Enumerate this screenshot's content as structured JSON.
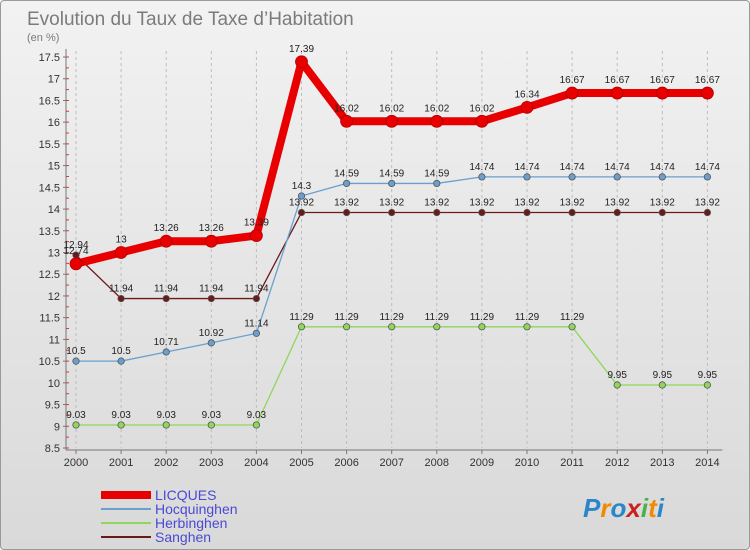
{
  "chart_data": {
    "type": "line",
    "title": "Evolution du Taux de Taxe d’Habitation",
    "ylabel": "(en %)",
    "xlabel": "",
    "categories": [
      "2000",
      "2001",
      "2002",
      "2003",
      "2004",
      "2005",
      "2006",
      "2007",
      "2008",
      "2009",
      "2010",
      "2011",
      "2012",
      "2013",
      "2014"
    ],
    "ylim": [
      8.5,
      17.5
    ],
    "yticks": [
      "8.5",
      "9",
      "9.5",
      "10",
      "10.5",
      "11",
      "11.5",
      "12",
      "12.5",
      "13",
      "13.5",
      "14",
      "14.5",
      "15",
      "15.5",
      "16",
      "16.5",
      "17",
      "17.5"
    ],
    "grid": "vertical",
    "legend_position": "bottom-left",
    "series": [
      {
        "name": "Sanghen",
        "color": "#6b1a1a",
        "values": [
          12.94,
          11.94,
          11.94,
          11.94,
          11.94,
          13.92,
          13.92,
          13.92,
          13.92,
          13.92,
          13.92,
          13.92,
          13.92,
          13.92,
          13.92
        ],
        "labels": [
          "12.94",
          "11.94",
          "11.94",
          "11.94",
          "11.94",
          "13.92",
          "13.92",
          "13.92",
          "13.92",
          "13.92",
          "13.92",
          "13.92",
          "13.92",
          "13.92",
          "13.92"
        ]
      },
      {
        "name": "Herbinghen",
        "color": "#8fd65a",
        "values": [
          9.03,
          9.03,
          9.03,
          9.03,
          9.03,
          11.29,
          11.29,
          11.29,
          11.29,
          11.29,
          11.29,
          11.29,
          9.95,
          9.95,
          9.95
        ],
        "labels": [
          "9.03",
          "9.03",
          "9.03",
          "9.03",
          "9.03",
          "11.29",
          "11.29",
          "11.29",
          "11.29",
          "11.29",
          "11.29",
          "11.29",
          "9.95",
          "9.95",
          "9.95"
        ]
      },
      {
        "name": "Hocquinghen",
        "color": "#6a9fd0",
        "values": [
          10.5,
          10.5,
          10.71,
          10.92,
          11.14,
          14.3,
          14.59,
          14.59,
          14.59,
          14.74,
          14.74,
          14.74,
          14.74,
          14.74,
          14.74
        ],
        "labels": [
          "10.5",
          "10.5",
          "10.71",
          "10.92",
          "11.14",
          "14.3",
          "14.59",
          "14.59",
          "14.59",
          "14.74",
          "14.74",
          "14.74",
          "14.74",
          "14.74",
          "14.74"
        ]
      },
      {
        "name": "LICQUES",
        "color": "#e80000",
        "values": [
          12.74,
          13,
          13.26,
          13.26,
          13.39,
          17.39,
          16.02,
          16.02,
          16.02,
          16.02,
          16.34,
          16.67,
          16.67,
          16.67,
          16.67
        ],
        "labels": [
          "12.74",
          "13",
          "13.26",
          "13.26",
          "13.39",
          "17.39",
          "16.02",
          "16.02",
          "16.02",
          "16.02",
          "16.34",
          "16.67",
          "16.67",
          "16.67",
          "16.67"
        ]
      }
    ],
    "legend": [
      "LICQUES",
      "Hocquinghen",
      "Herbinghen",
      "Sanghen"
    ]
  },
  "logo": {
    "text": "Proxiti",
    "letters": [
      "P",
      "r",
      "o",
      "x",
      "i",
      "t",
      "i"
    ],
    "colors": [
      "#2a86c7",
      "#f08a00",
      "#2a86c7",
      "#cc2020",
      "#4bb14b",
      "#f08a00",
      "#2a86c7"
    ]
  }
}
